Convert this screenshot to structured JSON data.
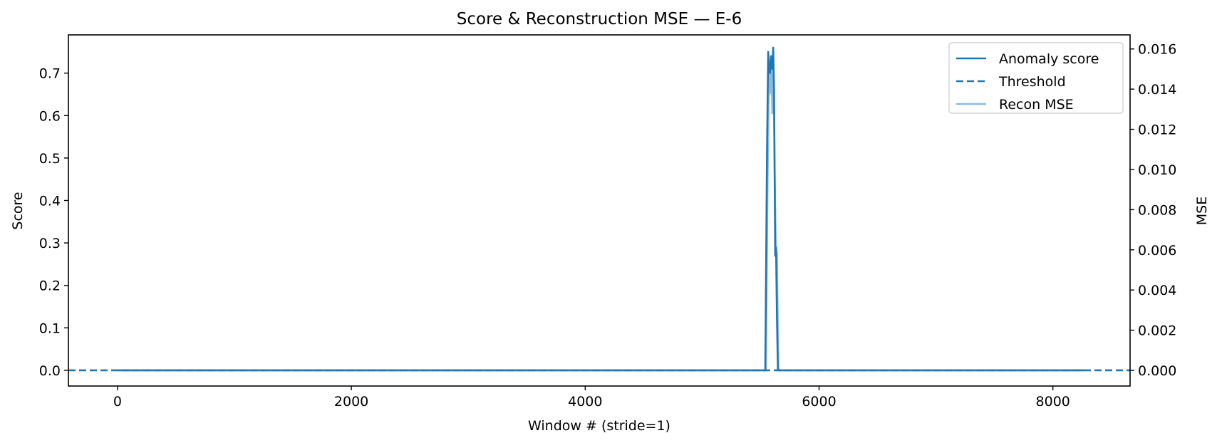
{
  "chart_data": {
    "type": "line",
    "title": "Score & Reconstruction MSE — E-6",
    "xlabel": "Window # (stride=1)",
    "ylabel": "Score",
    "y2label": "MSE",
    "xlim": [
      -420,
      8660
    ],
    "ylim": [
      -0.037,
      0.79
    ],
    "y2lim": [
      -0.00078,
      0.0167
    ],
    "xticks": [
      0,
      2000,
      4000,
      6000,
      8000
    ],
    "yticks": [
      0.0,
      0.1,
      0.2,
      0.3,
      0.4,
      0.5,
      0.6,
      0.7
    ],
    "ytick_labels": [
      "0.0",
      "0.1",
      "0.2",
      "0.3",
      "0.4",
      "0.5",
      "0.6",
      "0.7"
    ],
    "y2ticks": [
      0.0,
      0.002,
      0.004,
      0.006,
      0.008,
      0.01,
      0.012,
      0.014,
      0.016
    ],
    "y2tick_labels": [
      "0.000",
      "0.002",
      "0.004",
      "0.006",
      "0.008",
      "0.010",
      "0.012",
      "0.014",
      "0.016"
    ],
    "legend_position": "top-right",
    "series": [
      {
        "name": "Anomaly score",
        "axis": "left",
        "style": "solid",
        "color": "#1f77b4",
        "x": [
          0,
          5540,
          5555,
          5565,
          5572,
          5580,
          5590,
          5600,
          5608,
          5615,
          5625,
          5632,
          5640,
          5648,
          5660,
          8270
        ],
        "y": [
          0.0,
          0.0,
          0.52,
          0.75,
          0.72,
          0.7,
          0.74,
          0.71,
          0.76,
          0.66,
          0.27,
          0.29,
          0.12,
          0.0,
          0.0,
          0.0
        ]
      },
      {
        "name": "Threshold",
        "axis": "left",
        "style": "dashed",
        "color": "#1f77b4",
        "x": [
          -420,
          8660
        ],
        "y": [
          0.0,
          0.0
        ]
      },
      {
        "name": "Recon MSE",
        "axis": "right",
        "style": "solid",
        "color": "#8ab9e0",
        "x": [
          0,
          5545,
          5560,
          5572,
          5582,
          5592,
          5600,
          5610,
          5620,
          5630,
          5640,
          5652,
          8270
        ],
        "y": [
          0.0,
          0.0,
          0.0095,
          0.0148,
          0.0138,
          0.0152,
          0.0128,
          0.0155,
          0.0102,
          0.0062,
          0.0058,
          0.0,
          0.0
        ]
      }
    ]
  }
}
